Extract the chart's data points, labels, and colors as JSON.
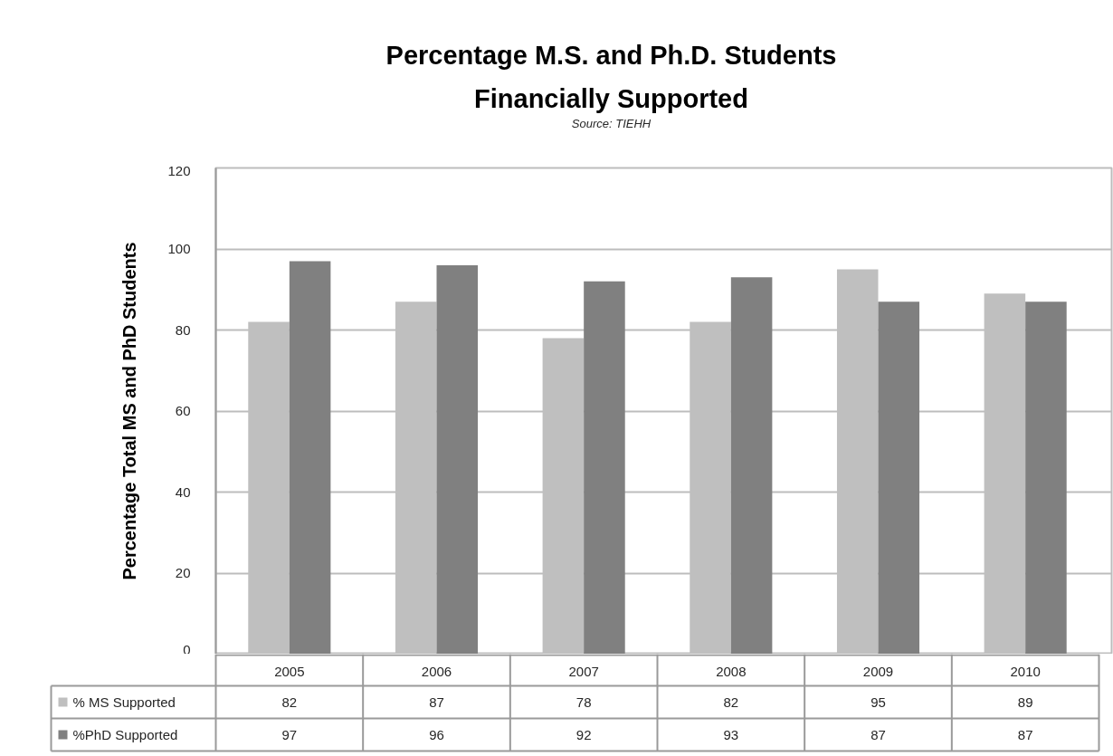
{
  "chart_data": {
    "type": "bar",
    "title": "Percentage M.S. and Ph.D. Students Financially Supported",
    "annotations": [
      "Source: TIEHH"
    ],
    "ylabel": "Percentage Total MS and PhD Students",
    "categories": [
      "2005",
      "2006",
      "2007",
      "2008",
      "2009",
      "2010"
    ],
    "series": [
      {
        "name": "% MS Supported",
        "color": "#bfbfbf",
        "values": [
          82,
          87,
          78,
          82,
          95,
          89
        ]
      },
      {
        "name": "%PhD Supported",
        "color": "#808080",
        "values": [
          97,
          96,
          92,
          93,
          87,
          87
        ]
      }
    ],
    "ylim": [
      0,
      120
    ],
    "yticks": [
      0,
      20,
      40,
      60,
      80,
      100,
      120
    ],
    "grid": "y",
    "legend": "bottom",
    "data_labels": true
  }
}
